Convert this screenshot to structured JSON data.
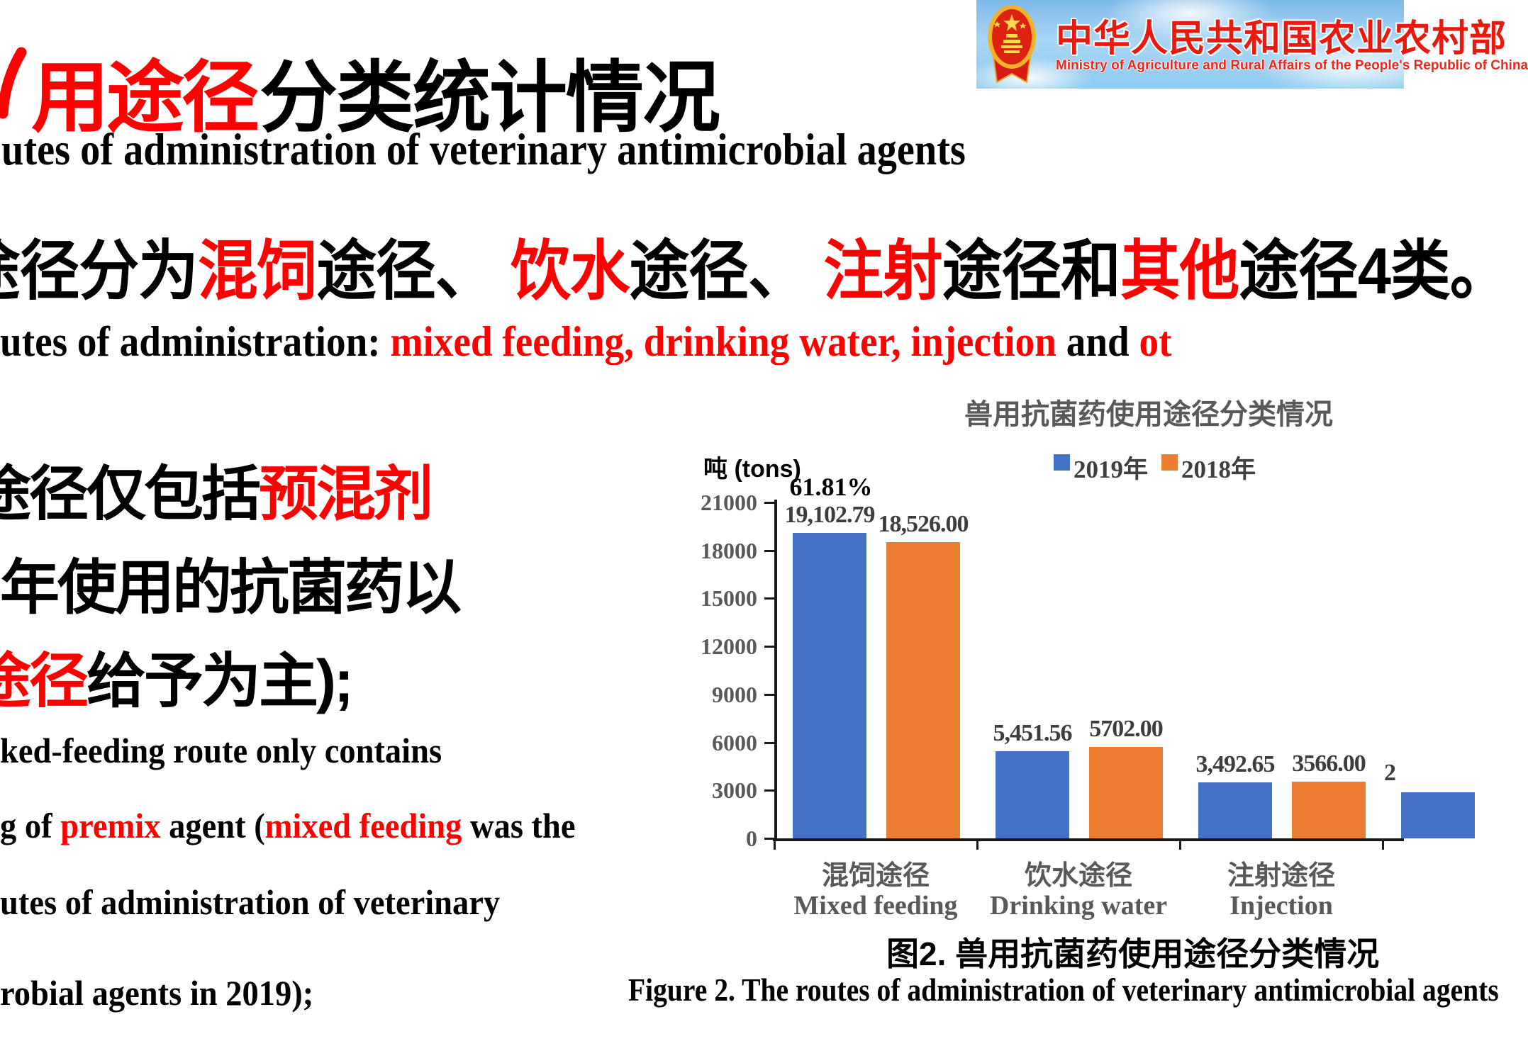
{
  "colors": {
    "red": "#ff0000",
    "black": "#000000",
    "bar_2019": "#4472C4",
    "bar_2018": "#ED7D31",
    "axis_label_gray": "#595959",
    "value_label_gray": "#3d3d3d",
    "banner_red": "#e8190f"
  },
  "banner": {
    "cn": "中华人民共和国农业农村部",
    "en": "Ministry of Agriculture and Rural Affairs of the People's Republic of China"
  },
  "title": {
    "red": "用途径",
    "black": "分类统计情况"
  },
  "subtitle_en": "utes of administration of veterinary antimicrobial agents",
  "para_cn_segments": [
    {
      "t": "途径分为",
      "c": "black"
    },
    {
      "t": "混饲",
      "c": "red"
    },
    {
      "t": "途径、 ",
      "c": "black"
    },
    {
      "t": "饮水",
      "c": "red"
    },
    {
      "t": "途径、 ",
      "c": "black"
    },
    {
      "t": "注射",
      "c": "red"
    },
    {
      "t": "途径和",
      "c": "black"
    },
    {
      "t": "其他",
      "c": "red"
    },
    {
      "t": "途径4类。",
      "c": "black"
    }
  ],
  "para_en_segments": [
    {
      "t": "utes of administration: ",
      "c": "black"
    },
    {
      "t": "mixed feeding,",
      "c": "red"
    },
    {
      "t": " ",
      "c": "black"
    },
    {
      "t": "drinking water,",
      "c": "red"
    },
    {
      "t": " ",
      "c": "black"
    },
    {
      "t": "injection",
      "c": "red"
    },
    {
      "t": " and ",
      "c": "black"
    },
    {
      "t": "ot",
      "c": "red"
    }
  ],
  "left_lines": [
    {
      "segments": [
        {
          "t": "途径仅包括",
          "c": "black"
        },
        {
          "t": "预混剂",
          "c": "red"
        }
      ]
    },
    {
      "segments": [
        {
          "t": "年使用的抗菌药以",
          "c": "black"
        }
      ]
    },
    {
      "segments": [
        {
          "t": "途径",
          "c": "red"
        },
        {
          "t": "给予为主);",
          "c": "black"
        }
      ]
    },
    {
      "segments": [
        {
          "t": "ked-feeding route only contains",
          "c": "black"
        }
      ]
    },
    {
      "segments": [
        {
          "t": "g of ",
          "c": "black"
        },
        {
          "t": "premix",
          "c": "red"
        },
        {
          "t": " agent (",
          "c": "black"
        },
        {
          "t": "mixed feeding",
          "c": "red"
        },
        {
          "t": " was the",
          "c": "black"
        }
      ]
    },
    {
      "segments": [
        {
          "t": "utes of administration of veterinary",
          "c": "black"
        }
      ]
    },
    {
      "segments": [
        {
          "t": "robial agents in 2019);",
          "c": "black"
        }
      ]
    }
  ],
  "chart_data": {
    "type": "bar",
    "title": "兽用抗菌药使用途径分类情况",
    "unit_label": "吨  (tons)",
    "annotation": "61.81%",
    "legend_position": "top",
    "grid": false,
    "ylim": [
      0,
      21000
    ],
    "yticks": [
      0,
      3000,
      6000,
      9000,
      12000,
      15000,
      18000,
      21000
    ],
    "categories": [
      {
        "cn": "混饲途径",
        "en": "Mixed feeding"
      },
      {
        "cn": "饮水途径",
        "en": "Drinking water"
      },
      {
        "cn": "注射途径",
        "en": "Injection"
      }
    ],
    "series": [
      {
        "name": "2019年",
        "color": "#4472C4",
        "values": [
          19102.79,
          5451.56,
          3492.65
        ],
        "labels": [
          "19,102.79",
          "5,451.56",
          "3,492.65"
        ]
      },
      {
        "name": "2018年",
        "color": "#ED7D31",
        "values": [
          18526.0,
          5702.0,
          3566.0
        ],
        "labels": [
          "18,526.00",
          "5702.00",
          "3566.00"
        ]
      }
    ],
    "partial_fourth_category": {
      "visible_label_fragment": "2",
      "visible_bar_series": "2019年",
      "bar_value_approx": 2900
    }
  },
  "caption": {
    "cn": "图2. 兽用抗菌药使用途径分类情况",
    "en": "Figure 2. The routes of administration of veterinary antimicrobial agents"
  }
}
